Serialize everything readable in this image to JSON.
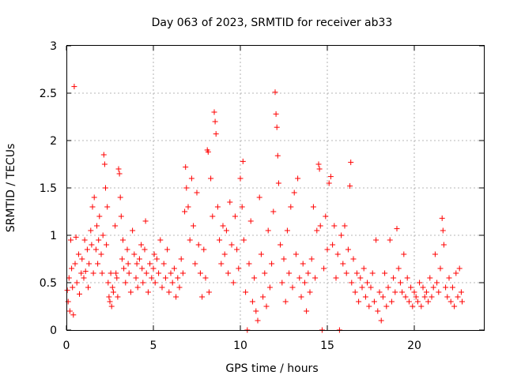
{
  "chart_data": {
    "type": "scatter",
    "title": "Day 063 of 2023, SRMTID for receiver ab33",
    "xlabel": "GPS time / hours",
    "ylabel": "SRMTID / TECUs",
    "xlim": [
      0,
      24
    ],
    "ylim": [
      0,
      3
    ],
    "x_ticks": [
      0,
      5,
      10,
      15,
      20
    ],
    "x_tick_labels": [
      "0",
      "5",
      "10",
      "15",
      "20"
    ],
    "y_ticks": [
      0,
      0.5,
      1,
      1.5,
      2,
      2.5,
      3
    ],
    "y_tick_labels": [
      "0",
      "0.5",
      "1",
      "1.5",
      "2",
      "2.5",
      "3"
    ],
    "grid": true,
    "marker": "+",
    "colors": {
      "points": "#ff0000",
      "grid": "#a0a0a0",
      "axis": "#000000"
    },
    "series": [
      {
        "name": "SRMTID",
        "points": [
          [
            0.05,
            0.42
          ],
          [
            0.1,
            0.3
          ],
          [
            0.15,
            0.55
          ],
          [
            0.2,
            0.2
          ],
          [
            0.25,
            0.95
          ],
          [
            0.3,
            0.65
          ],
          [
            0.35,
            0.45
          ],
          [
            0.4,
            0.16
          ],
          [
            0.45,
            2.57
          ],
          [
            0.5,
            0.7
          ],
          [
            0.55,
            0.98
          ],
          [
            0.6,
            0.5
          ],
          [
            0.7,
            0.8
          ],
          [
            0.75,
            0.38
          ],
          [
            0.85,
            0.6
          ],
          [
            0.9,
            0.75
          ],
          [
            1.0,
            0.55
          ],
          [
            1.05,
            0.95
          ],
          [
            1.1,
            0.62
          ],
          [
            1.2,
            0.85
          ],
          [
            1.25,
            0.45
          ],
          [
            1.3,
            0.7
          ],
          [
            1.4,
            1.05
          ],
          [
            1.45,
            0.9
          ],
          [
            1.5,
            1.3
          ],
          [
            1.55,
            0.6
          ],
          [
            1.6,
            1.4
          ],
          [
            1.7,
            0.85
          ],
          [
            1.75,
            1.1
          ],
          [
            1.8,
            0.7
          ],
          [
            1.85,
            0.95
          ],
          [
            1.9,
            1.2
          ],
          [
            2.0,
            0.8
          ],
          [
            2.05,
            0.6
          ],
          [
            2.1,
            1.0
          ],
          [
            2.15,
            1.85
          ],
          [
            2.2,
            1.75
          ],
          [
            2.25,
            1.5
          ],
          [
            2.3,
            0.9
          ],
          [
            2.35,
            1.3
          ],
          [
            2.4,
            0.5
          ],
          [
            2.45,
            0.35
          ],
          [
            2.5,
            0.3
          ],
          [
            2.55,
            0.6
          ],
          [
            2.6,
            0.25
          ],
          [
            2.65,
            0.45
          ],
          [
            2.7,
            0.4
          ],
          [
            2.8,
            1.1
          ],
          [
            2.85,
            0.6
          ],
          [
            2.9,
            0.55
          ],
          [
            2.95,
            0.35
          ],
          [
            3.0,
            1.7
          ],
          [
            3.05,
            1.65
          ],
          [
            3.1,
            1.4
          ],
          [
            3.15,
            1.2
          ],
          [
            3.2,
            0.75
          ],
          [
            3.25,
            0.95
          ],
          [
            3.3,
            0.65
          ],
          [
            3.4,
            0.5
          ],
          [
            3.5,
            0.85
          ],
          [
            3.55,
            0.7
          ],
          [
            3.6,
            0.6
          ],
          [
            3.7,
            0.4
          ],
          [
            3.8,
            1.05
          ],
          [
            3.9,
            0.8
          ],
          [
            4.0,
            0.55
          ],
          [
            4.05,
            0.7
          ],
          [
            4.1,
            0.45
          ],
          [
            4.2,
            0.75
          ],
          [
            4.3,
            0.9
          ],
          [
            4.35,
            0.65
          ],
          [
            4.4,
            0.5
          ],
          [
            4.5,
            0.85
          ],
          [
            4.55,
            1.15
          ],
          [
            4.6,
            0.6
          ],
          [
            4.7,
            0.4
          ],
          [
            4.8,
            0.7
          ],
          [
            4.9,
            0.55
          ],
          [
            5.0,
            0.65
          ],
          [
            5.05,
            0.8
          ],
          [
            5.1,
            0.5
          ],
          [
            5.2,
            0.75
          ],
          [
            5.3,
            0.6
          ],
          [
            5.4,
            0.95
          ],
          [
            5.5,
            0.45
          ],
          [
            5.6,
            0.7
          ],
          [
            5.7,
            0.55
          ],
          [
            5.8,
            0.85
          ],
          [
            5.9,
            0.4
          ],
          [
            6.0,
            0.6
          ],
          [
            6.1,
            0.5
          ],
          [
            6.2,
            0.65
          ],
          [
            6.3,
            0.35
          ],
          [
            6.4,
            0.55
          ],
          [
            6.5,
            0.45
          ],
          [
            6.6,
            0.75
          ],
          [
            6.7,
            0.6
          ],
          [
            6.8,
            1.25
          ],
          [
            6.85,
            1.72
          ],
          [
            6.9,
            1.5
          ],
          [
            7.0,
            1.3
          ],
          [
            7.1,
            0.95
          ],
          [
            7.2,
            1.6
          ],
          [
            7.3,
            1.1
          ],
          [
            7.4,
            0.7
          ],
          [
            7.5,
            1.45
          ],
          [
            7.6,
            0.9
          ],
          [
            7.7,
            0.6
          ],
          [
            7.8,
            0.35
          ],
          [
            7.9,
            0.85
          ],
          [
            8.0,
            0.55
          ],
          [
            8.1,
            1.9
          ],
          [
            8.15,
            1.88
          ],
          [
            8.2,
            0.4
          ],
          [
            8.3,
            1.6
          ],
          [
            8.4,
            1.2
          ],
          [
            8.5,
            2.3
          ],
          [
            8.55,
            2.2
          ],
          [
            8.6,
            2.07
          ],
          [
            8.7,
            1.3
          ],
          [
            8.8,
            0.95
          ],
          [
            8.9,
            0.7
          ],
          [
            9.0,
            1.1
          ],
          [
            9.1,
            0.8
          ],
          [
            9.2,
            1.05
          ],
          [
            9.3,
            0.6
          ],
          [
            9.4,
            1.35
          ],
          [
            9.5,
            0.9
          ],
          [
            9.6,
            0.5
          ],
          [
            9.7,
            1.2
          ],
          [
            9.8,
            0.85
          ],
          [
            9.9,
            0.65
          ],
          [
            10.0,
            1.6
          ],
          [
            10.1,
            1.3
          ],
          [
            10.15,
            1.78
          ],
          [
            10.2,
            0.95
          ],
          [
            10.3,
            0.4
          ],
          [
            10.4,
            0.0
          ],
          [
            10.5,
            0.7
          ],
          [
            10.6,
            1.15
          ],
          [
            10.7,
            0.3
          ],
          [
            10.8,
            0.55
          ],
          [
            10.9,
            0.2
          ],
          [
            11.0,
            0.1
          ],
          [
            11.1,
            1.4
          ],
          [
            11.2,
            0.8
          ],
          [
            11.3,
            0.35
          ],
          [
            11.4,
            0.6
          ],
          [
            11.5,
            0.25
          ],
          [
            11.6,
            1.05
          ],
          [
            11.7,
            0.45
          ],
          [
            11.8,
            0.7
          ],
          [
            11.9,
            1.25
          ],
          [
            12.0,
            2.51
          ],
          [
            12.05,
            2.28
          ],
          [
            12.1,
            2.14
          ],
          [
            12.15,
            1.84
          ],
          [
            12.2,
            1.55
          ],
          [
            12.3,
            0.9
          ],
          [
            12.4,
            0.5
          ],
          [
            12.5,
            0.75
          ],
          [
            12.6,
            0.3
          ],
          [
            12.7,
            1.05
          ],
          [
            12.8,
            0.6
          ],
          [
            12.9,
            1.3
          ],
          [
            13.0,
            0.45
          ],
          [
            13.1,
            1.45
          ],
          [
            13.2,
            0.8
          ],
          [
            13.3,
            1.6
          ],
          [
            13.4,
            0.55
          ],
          [
            13.5,
            0.35
          ],
          [
            13.6,
            0.7
          ],
          [
            13.7,
            0.5
          ],
          [
            13.8,
            0.2
          ],
          [
            13.9,
            0.6
          ],
          [
            14.0,
            0.4
          ],
          [
            14.1,
            0.75
          ],
          [
            14.2,
            1.3
          ],
          [
            14.3,
            0.55
          ],
          [
            14.4,
            1.05
          ],
          [
            14.5,
            1.75
          ],
          [
            14.55,
            1.7
          ],
          [
            14.6,
            1.1
          ],
          [
            14.7,
            0.0
          ],
          [
            14.8,
            0.65
          ],
          [
            14.9,
            1.2
          ],
          [
            15.0,
            0.85
          ],
          [
            15.1,
            1.55
          ],
          [
            15.2,
            1.62
          ],
          [
            15.3,
            0.9
          ],
          [
            15.4,
            1.1
          ],
          [
            15.5,
            0.55
          ],
          [
            15.6,
            0.8
          ],
          [
            15.7,
            0.0
          ],
          [
            15.8,
            1.0
          ],
          [
            15.9,
            0.7
          ],
          [
            16.0,
            1.1
          ],
          [
            16.1,
            0.6
          ],
          [
            16.2,
            0.85
          ],
          [
            16.3,
            1.52
          ],
          [
            16.35,
            1.77
          ],
          [
            16.4,
            0.5
          ],
          [
            16.5,
            0.75
          ],
          [
            16.6,
            0.4
          ],
          [
            16.7,
            0.6
          ],
          [
            16.8,
            0.3
          ],
          [
            16.9,
            0.55
          ],
          [
            17.0,
            0.45
          ],
          [
            17.1,
            0.65
          ],
          [
            17.2,
            0.35
          ],
          [
            17.3,
            0.5
          ],
          [
            17.4,
            0.25
          ],
          [
            17.5,
            0.45
          ],
          [
            17.6,
            0.6
          ],
          [
            17.7,
            0.3
          ],
          [
            17.8,
            0.95
          ],
          [
            17.9,
            0.2
          ],
          [
            18.0,
            0.4
          ],
          [
            18.1,
            0.1
          ],
          [
            18.2,
            0.35
          ],
          [
            18.3,
            0.6
          ],
          [
            18.4,
            0.25
          ],
          [
            18.5,
            0.45
          ],
          [
            18.6,
            0.95
          ],
          [
            18.7,
            0.3
          ],
          [
            18.8,
            0.55
          ],
          [
            18.9,
            0.4
          ],
          [
            19.0,
            1.07
          ],
          [
            19.1,
            0.65
          ],
          [
            19.2,
            0.5
          ],
          [
            19.3,
            0.4
          ],
          [
            19.4,
            0.8
          ],
          [
            19.5,
            0.35
          ],
          [
            19.6,
            0.55
          ],
          [
            19.7,
            0.3
          ],
          [
            19.8,
            0.45
          ],
          [
            19.9,
            0.25
          ],
          [
            20.0,
            0.4
          ],
          [
            20.1,
            0.35
          ],
          [
            20.2,
            0.3
          ],
          [
            20.3,
            0.5
          ],
          [
            20.4,
            0.25
          ],
          [
            20.5,
            0.45
          ],
          [
            20.6,
            0.35
          ],
          [
            20.7,
            0.4
          ],
          [
            20.8,
            0.3
          ],
          [
            20.9,
            0.55
          ],
          [
            21.0,
            0.35
          ],
          [
            21.1,
            0.45
          ],
          [
            21.2,
            0.8
          ],
          [
            21.3,
            0.5
          ],
          [
            21.4,
            0.4
          ],
          [
            21.5,
            0.65
          ],
          [
            21.6,
            1.18
          ],
          [
            21.65,
            1.05
          ],
          [
            21.7,
            0.9
          ],
          [
            21.8,
            0.45
          ],
          [
            21.9,
            0.35
          ],
          [
            22.0,
            0.55
          ],
          [
            22.1,
            0.3
          ],
          [
            22.2,
            0.45
          ],
          [
            22.3,
            0.25
          ],
          [
            22.4,
            0.6
          ],
          [
            22.5,
            0.35
          ],
          [
            22.6,
            0.65
          ],
          [
            22.7,
            0.4
          ],
          [
            22.75,
            0.3
          ]
        ]
      }
    ]
  }
}
